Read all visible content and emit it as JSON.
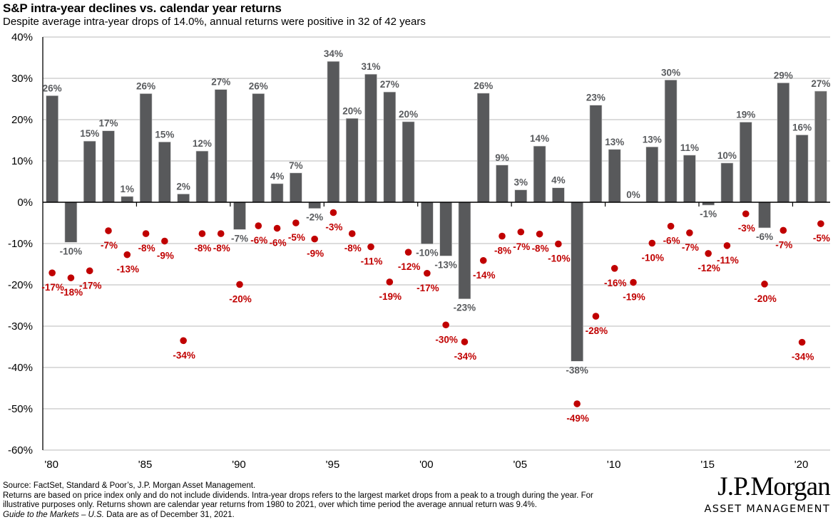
{
  "chart_data": {
    "type": "bar",
    "title": "S&P intra-year declines vs. calendar year returns",
    "subtitle": "Despite average intra-year drops of 14.0%, annual returns were positive in 32 of 42 years",
    "xlabel": "",
    "ylabel": "",
    "ylim": [
      -60,
      40
    ],
    "yticks": [
      40,
      30,
      20,
      10,
      0,
      -10,
      -20,
      -30,
      -40,
      -50,
      -60
    ],
    "ytick_labels": [
      "40%",
      "30%",
      "20%",
      "10%",
      "0%",
      "-10%",
      "-20%",
      "-30%",
      "-40%",
      "-50%",
      "-60%"
    ],
    "xtick_labels": [
      {
        "year": 1980,
        "label": "'80"
      },
      {
        "year": 1985,
        "label": "'85"
      },
      {
        "year": 1990,
        "label": "'90"
      },
      {
        "year": 1995,
        "label": "'95"
      },
      {
        "year": 2000,
        "label": "'00"
      },
      {
        "year": 2005,
        "label": "'05"
      },
      {
        "year": 2010,
        "label": "'10"
      },
      {
        "year": 2015,
        "label": "'15"
      },
      {
        "year": 2020,
        "label": "'20"
      }
    ],
    "grid": true,
    "categories": [
      1980,
      1981,
      1982,
      1983,
      1984,
      1985,
      1986,
      1987,
      1988,
      1989,
      1990,
      1991,
      1992,
      1993,
      1994,
      1995,
      1996,
      1997,
      1998,
      1999,
      2000,
      2001,
      2002,
      2003,
      2004,
      2005,
      2006,
      2007,
      2008,
      2009,
      2010,
      2011,
      2012,
      2013,
      2014,
      2015,
      2016,
      2017,
      2018,
      2019,
      2020,
      2021
    ],
    "series": [
      {
        "name": "Calendar year return",
        "type": "bar",
        "color": "#58595b",
        "highlight_last_color": "#676767",
        "values": [
          25.8,
          -9.7,
          14.8,
          17.3,
          1.4,
          26.3,
          14.6,
          2.0,
          12.4,
          27.3,
          -6.6,
          26.3,
          4.5,
          7.1,
          -1.5,
          34.1,
          20.3,
          31.0,
          26.7,
          19.5,
          -10.1,
          -13.0,
          -23.4,
          26.4,
          9.0,
          3.0,
          13.6,
          3.5,
          -38.5,
          23.5,
          12.8,
          0.0,
          13.4,
          29.6,
          11.4,
          -0.7,
          9.5,
          19.4,
          -6.2,
          28.9,
          16.3,
          26.9
        ],
        "labels": [
          "26%",
          "-10%",
          "15%",
          "17%",
          "1%",
          "26%",
          "15%",
          "2%",
          "12%",
          "27%",
          "-7%",
          "26%",
          "4%",
          "7%",
          "-2%",
          "34%",
          "20%",
          "31%",
          "27%",
          "20%",
          "-10%",
          "-13%",
          "-23%",
          "26%",
          "9%",
          "3%",
          "14%",
          "4%",
          "-38%",
          "23%",
          "13%",
          "0%",
          "13%",
          "30%",
          "11%",
          "-1%",
          "10%",
          "19%",
          "-6%",
          "29%",
          "16%",
          "27%"
        ]
      },
      {
        "name": "Intra-year decline",
        "type": "scatter",
        "color": "#c00000",
        "values": [
          -17.1,
          -18.3,
          -16.6,
          -6.9,
          -12.7,
          -7.6,
          -9.4,
          -33.5,
          -7.6,
          -7.6,
          -19.9,
          -5.7,
          -6.3,
          -5.0,
          -8.9,
          -2.5,
          -7.6,
          -10.8,
          -19.3,
          -12.1,
          -17.2,
          -29.7,
          -33.8,
          -14.1,
          -8.2,
          -7.2,
          -7.7,
          -10.1,
          -48.8,
          -27.6,
          -16.0,
          -19.4,
          -9.9,
          -5.8,
          -7.4,
          -12.4,
          -10.5,
          -2.8,
          -19.8,
          -6.8,
          -33.9,
          -5.2
        ],
        "labels": [
          "-17%",
          "-18%",
          "-17%",
          "-7%",
          "-13%",
          "-8%",
          "-9%",
          "-34%",
          "-8%",
          "-8%",
          "-20%",
          "-6%",
          "-6%",
          "-5%",
          "-9%",
          "-3%",
          "-8%",
          "-11%",
          "-19%",
          "-12%",
          "-17%",
          "-30%",
          "-34%",
          "-14%",
          "-8%",
          "-7%",
          "-8%",
          "-10%",
          "-49%",
          "-28%",
          "-16%",
          "-19%",
          "-10%",
          "-6%",
          "-7%",
          "-12%",
          "-11%",
          "-3%",
          "-20%",
          "-7%",
          "-34%",
          "-5%"
        ]
      }
    ],
    "legend": "none"
  },
  "footer": {
    "source": "Source: FactSet, Standard & Poor’s, J.P. Morgan Asset Management.",
    "note1": "Returns are based on price index only and do not include dividends. Intra-year drops refers to the largest market drops from a peak to a trough during the year. For",
    "note2": "illustrative purposes only. Returns shown are calendar year returns from 1980 to 2021, over which time period the average annual return was 9.4%.",
    "guide_italic": "Guide to the Markets – U.S.",
    "as_of": " Data are as of December 31, 2021."
  },
  "logo": {
    "main": "J.P.Morgan",
    "sub": "ASSET MANAGEMENT"
  }
}
